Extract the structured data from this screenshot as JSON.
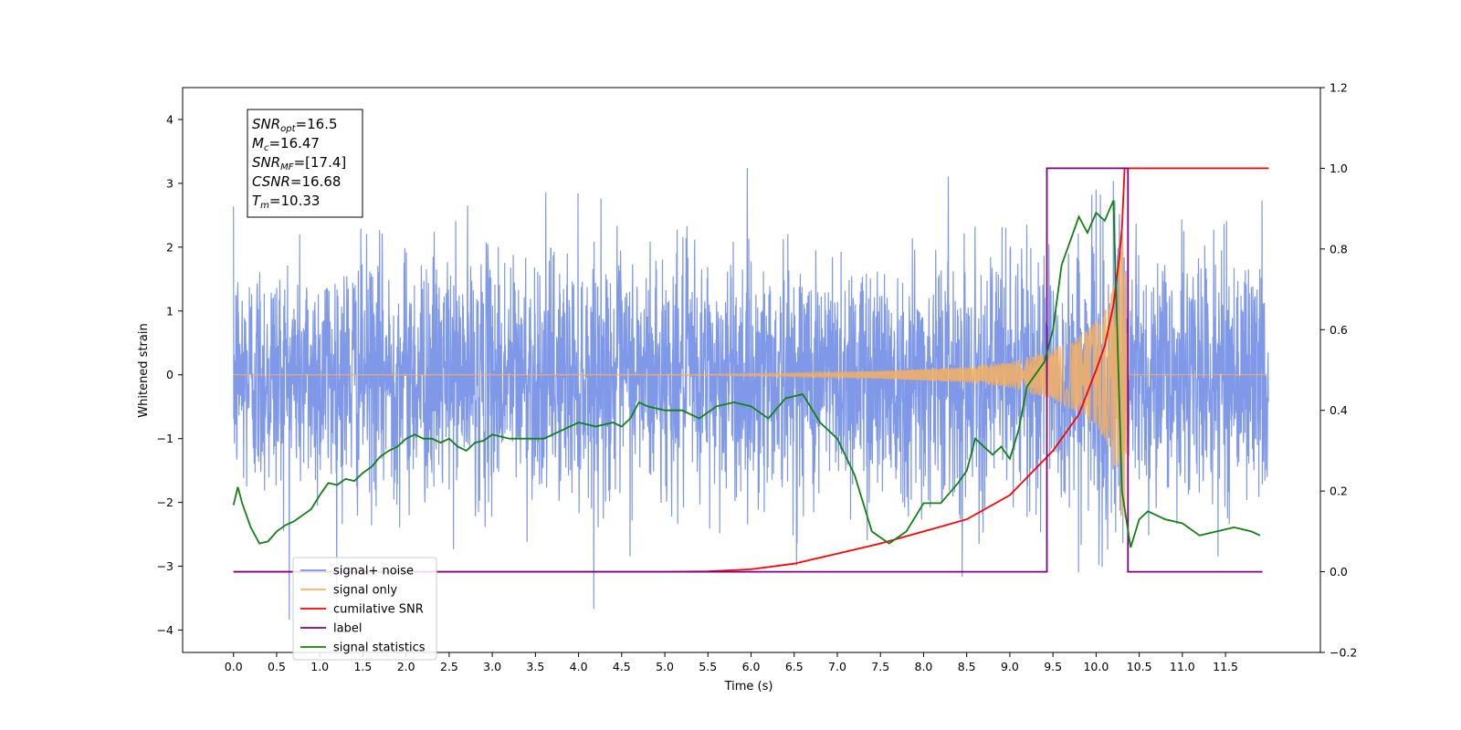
{
  "chart_data": {
    "type": "line",
    "title": "",
    "xlabel": "Time (s)",
    "ylabel": "Whitened strain",
    "xlim": [
      -0.59,
      12.6
    ],
    "ylim": [
      -4.35,
      4.5
    ],
    "y2lim": [
      -0.2,
      1.2
    ],
    "xticks": [
      "0.0",
      "0.5",
      "1.0",
      "1.5",
      "2.0",
      "2.5",
      "3.0",
      "3.5",
      "4.0",
      "4.5",
      "5.0",
      "5.5",
      "6.0",
      "6.5",
      "7.0",
      "7.5",
      "8.0",
      "8.5",
      "9.0",
      "9.5",
      "10.0",
      "10.5",
      "11.0",
      "11.5"
    ],
    "yticks": [
      "4",
      "3",
      "2",
      "1",
      "0",
      "−1",
      "−2",
      "−3",
      "−4"
    ],
    "y2ticks": [
      "1.2",
      "1.0",
      "0.8",
      "0.6",
      "0.4",
      "0.2",
      "0.0",
      "−0.2"
    ],
    "grid": false,
    "legend_position": "lower-left",
    "annotation": {
      "lines": [
        {
          "sym": "SNR",
          "sub": "opt",
          "val": "=16.5"
        },
        {
          "sym": "M",
          "sub": "c",
          "val": "=16.47"
        },
        {
          "sym": "SNR",
          "sub": "MF",
          "val": "=[17.4]"
        },
        {
          "sym": "CSNR",
          "sub": "",
          "val": "=16.68"
        },
        {
          "sym": "T",
          "sub": "m",
          "val": "=10.33"
        }
      ]
    },
    "series": [
      {
        "name": "signal+ noise",
        "axis": "left",
        "color": "#7892e6",
        "noise_sigma": 0.95,
        "x_range": [
          0.0,
          12.0
        ]
      },
      {
        "name": "signal only",
        "axis": "left",
        "color": "#f5b060",
        "envelope": [
          [
            0.0,
            0.0
          ],
          [
            5.5,
            0.01
          ],
          [
            6.5,
            0.03
          ],
          [
            7.5,
            0.06
          ],
          [
            8.5,
            0.12
          ],
          [
            9.0,
            0.2
          ],
          [
            9.5,
            0.4
          ],
          [
            9.8,
            0.6
          ],
          [
            10.0,
            0.85
          ],
          [
            10.1,
            1.0
          ],
          [
            10.2,
            1.4
          ],
          [
            10.3,
            2.2
          ],
          [
            10.33,
            2.45
          ],
          [
            10.38,
            0.0
          ],
          [
            12.0,
            0.0
          ]
        ]
      },
      {
        "name": "cumilative SNR",
        "axis": "right",
        "color": "#ff0000",
        "x": [
          0.0,
          5.0,
          5.5,
          6.0,
          6.5,
          7.0,
          7.5,
          8.0,
          8.5,
          9.0,
          9.5,
          9.8,
          10.0,
          10.1,
          10.2,
          10.27,
          10.3,
          10.33,
          12.0
        ],
        "values": [
          0.0,
          0.0,
          0.001,
          0.006,
          0.02,
          0.045,
          0.07,
          0.1,
          0.13,
          0.19,
          0.3,
          0.39,
          0.5,
          0.56,
          0.66,
          0.78,
          0.85,
          1.0,
          1.0
        ]
      },
      {
        "name": "label",
        "axis": "right",
        "color": "#800080",
        "x": [
          0.0,
          9.43,
          9.43,
          10.37,
          10.37,
          11.93
        ],
        "values": [
          0.0,
          0.0,
          1.0,
          1.0,
          0.0,
          0.0
        ]
      },
      {
        "name": "signal statistics",
        "axis": "right",
        "color": "#138013",
        "x": [
          0.0,
          0.05,
          0.1,
          0.2,
          0.3,
          0.4,
          0.5,
          0.6,
          0.7,
          0.8,
          0.9,
          1.0,
          1.1,
          1.2,
          1.3,
          1.4,
          1.5,
          1.6,
          1.7,
          1.8,
          1.9,
          2.0,
          2.1,
          2.2,
          2.3,
          2.4,
          2.5,
          2.6,
          2.7,
          2.8,
          2.9,
          3.0,
          3.2,
          3.4,
          3.6,
          3.8,
          4.0,
          4.2,
          4.4,
          4.5,
          4.6,
          4.7,
          4.8,
          5.0,
          5.2,
          5.4,
          5.6,
          5.8,
          6.0,
          6.2,
          6.4,
          6.6,
          6.8,
          7.0,
          7.2,
          7.4,
          7.6,
          7.8,
          8.0,
          8.2,
          8.4,
          8.5,
          8.6,
          8.8,
          8.9,
          9.0,
          9.1,
          9.2,
          9.4,
          9.5,
          9.6,
          9.7,
          9.8,
          9.9,
          10.0,
          10.1,
          10.2,
          10.3,
          10.4,
          10.5,
          10.6,
          10.8,
          11.0,
          11.2,
          11.4,
          11.6,
          11.8,
          11.9
        ],
        "values": [
          0.165,
          0.21,
          0.17,
          0.11,
          0.07,
          0.075,
          0.1,
          0.115,
          0.125,
          0.14,
          0.155,
          0.19,
          0.22,
          0.215,
          0.23,
          0.225,
          0.245,
          0.26,
          0.285,
          0.3,
          0.31,
          0.33,
          0.34,
          0.33,
          0.33,
          0.32,
          0.33,
          0.31,
          0.3,
          0.32,
          0.325,
          0.34,
          0.33,
          0.33,
          0.33,
          0.35,
          0.37,
          0.36,
          0.37,
          0.36,
          0.38,
          0.42,
          0.41,
          0.4,
          0.4,
          0.38,
          0.41,
          0.42,
          0.41,
          0.38,
          0.43,
          0.44,
          0.37,
          0.33,
          0.24,
          0.1,
          0.07,
          0.1,
          0.17,
          0.17,
          0.22,
          0.25,
          0.33,
          0.29,
          0.31,
          0.28,
          0.35,
          0.46,
          0.52,
          0.6,
          0.76,
          0.82,
          0.88,
          0.84,
          0.89,
          0.87,
          0.92,
          0.2,
          0.06,
          0.13,
          0.15,
          0.13,
          0.12,
          0.09,
          0.1,
          0.11,
          0.1,
          0.09
        ]
      }
    ]
  }
}
